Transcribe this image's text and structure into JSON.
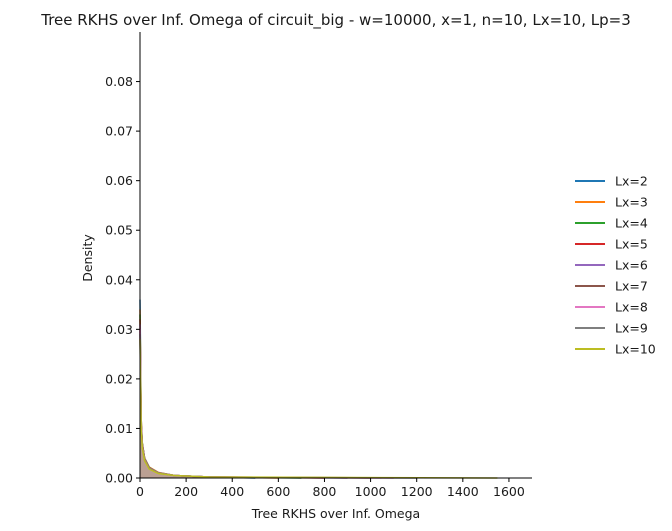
{
  "chart_data": {
    "type": "line",
    "title": "Tree RKHS over Inf. Omega of circuit_big - w=10000, x=1, n=10, Lx=10, Lp=3",
    "xlabel": "Tree RKHS over Inf. Omega",
    "ylabel": "Density",
    "xlim": [
      0,
      1700
    ],
    "ylim": [
      0,
      0.09
    ],
    "xticks": [
      0,
      200,
      400,
      600,
      800,
      1000,
      1200,
      1400,
      1600
    ],
    "yticks": [
      0.0,
      0.01,
      0.02,
      0.03,
      0.04,
      0.05,
      0.06,
      0.07,
      0.08
    ],
    "xtick_labels": [
      "0",
      "200",
      "400",
      "600",
      "800",
      "1000",
      "1200",
      "1400",
      "1600"
    ],
    "ytick_labels": [
      "0.00",
      "0.01",
      "0.02",
      "0.03",
      "0.04",
      "0.05",
      "0.06",
      "0.07",
      "0.08"
    ],
    "legend_position": "right",
    "series": [
      {
        "name": "Lx=2",
        "color": "#1f77b4",
        "x": [
          0,
          5,
          10,
          20,
          40,
          80,
          150,
          300,
          500
        ],
        "y": [
          0.036,
          0.012,
          0.007,
          0.004,
          0.0022,
          0.0011,
          0.0005,
          0.0002,
          0.0
        ]
      },
      {
        "name": "Lx=3",
        "color": "#ff7f0e",
        "x": [
          0,
          5,
          10,
          20,
          40,
          80,
          150,
          300,
          600
        ],
        "y": [
          0.034,
          0.012,
          0.007,
          0.004,
          0.0022,
          0.0011,
          0.0005,
          0.0002,
          0.0
        ]
      },
      {
        "name": "Lx=4",
        "color": "#2ca02c",
        "x": [
          0,
          5,
          10,
          20,
          40,
          80,
          150,
          300,
          700
        ],
        "y": [
          0.033,
          0.011,
          0.007,
          0.004,
          0.0021,
          0.001,
          0.0005,
          0.0002,
          0.0
        ]
      },
      {
        "name": "Lx=5",
        "color": "#d62728",
        "x": [
          0,
          5,
          10,
          20,
          40,
          80,
          150,
          300,
          800
        ],
        "y": [
          0.032,
          0.011,
          0.0068,
          0.0039,
          0.002,
          0.001,
          0.0005,
          0.0002,
          0.0
        ]
      },
      {
        "name": "Lx=6",
        "color": "#9467bd",
        "x": [
          0,
          5,
          10,
          20,
          40,
          80,
          150,
          300,
          900
        ],
        "y": [
          0.031,
          0.011,
          0.0066,
          0.0038,
          0.002,
          0.001,
          0.0005,
          0.0002,
          0.0
        ]
      },
      {
        "name": "Lx=7",
        "color": "#8c564b",
        "x": [
          0,
          5,
          10,
          20,
          40,
          80,
          150,
          300,
          1000
        ],
        "y": [
          0.03,
          0.0105,
          0.0064,
          0.0037,
          0.0019,
          0.001,
          0.0005,
          0.0002,
          0.0
        ]
      },
      {
        "name": "Lx=8",
        "color": "#e377c2",
        "x": [
          0,
          5,
          10,
          20,
          40,
          80,
          150,
          300,
          1100
        ],
        "y": [
          0.03,
          0.0105,
          0.0064,
          0.0037,
          0.0019,
          0.001,
          0.0005,
          0.0002,
          0.0
        ]
      },
      {
        "name": "Lx=9",
        "color": "#7f7f7f",
        "x": [
          0,
          5,
          10,
          20,
          40,
          80,
          150,
          300,
          1200
        ],
        "y": [
          0.029,
          0.01,
          0.0062,
          0.0036,
          0.0019,
          0.001,
          0.0005,
          0.0002,
          0.0
        ]
      },
      {
        "name": "Lx=10",
        "color": "#bcbd22",
        "x": [
          0,
          5,
          10,
          20,
          40,
          80,
          150,
          300,
          1550
        ],
        "y": [
          0.028,
          0.01,
          0.006,
          0.0035,
          0.0018,
          0.0009,
          0.0005,
          0.0002,
          0.0
        ]
      }
    ]
  }
}
